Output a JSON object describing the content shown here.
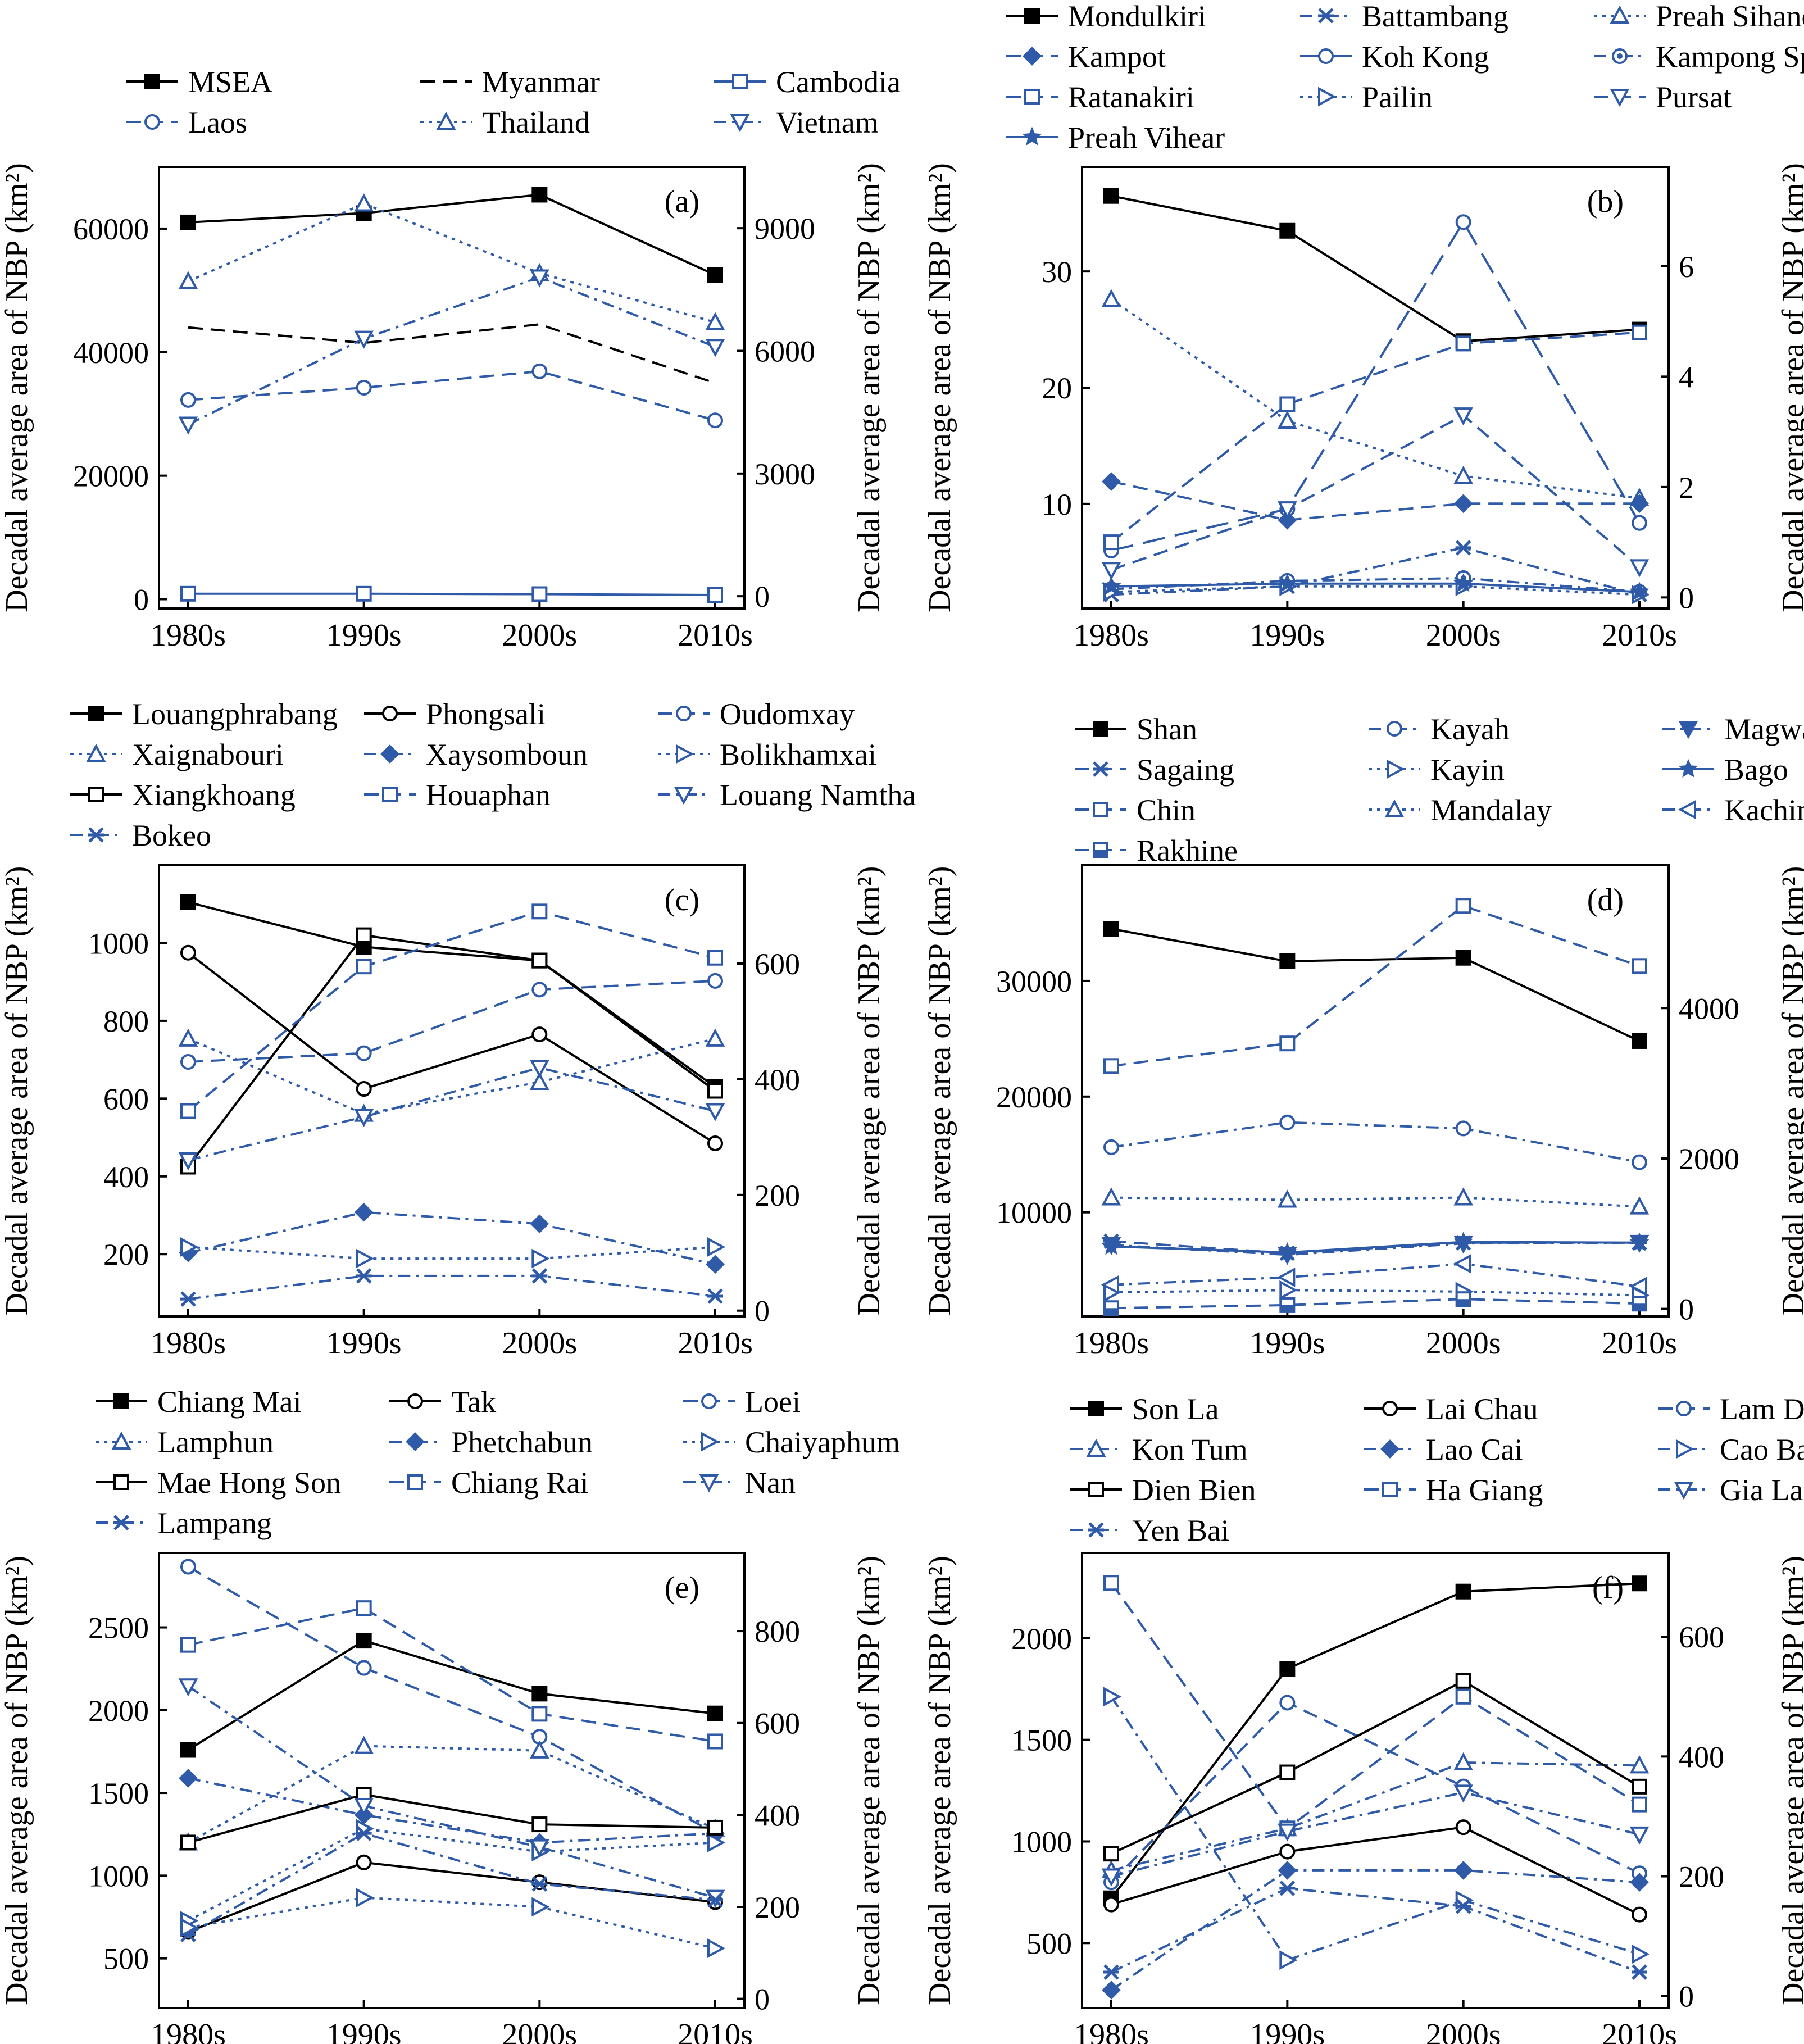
{
  "figure": {
    "x_categories": [
      "1980s",
      "1990s",
      "2000s",
      "2010s"
    ],
    "ylabel_left": "Decadal average area of NBP (km²)",
    "ylabel_right": "Decadal average area of NBP (km²)",
    "colors": {
      "black": "#000000",
      "blue": "#2f5aa8"
    }
  },
  "chart_data": [
    {
      "panel": "(a)",
      "type": "line",
      "x": [
        "1980s",
        "1990s",
        "2000s",
        "2010s"
      ],
      "ylim_left": [
        -1500,
        70000
      ],
      "ylim_right": [
        -300,
        10500
      ],
      "yticks_left": [
        0,
        20000,
        40000,
        60000
      ],
      "yticks_right": [
        0,
        3000,
        6000,
        9000
      ],
      "legend_cols": 3,
      "series": [
        {
          "name": "MSEA",
          "axis": "left",
          "color": "black",
          "dash": "solid",
          "marker": "square-filled",
          "values": [
            61000,
            62500,
            65500,
            52500
          ]
        },
        {
          "name": "Myanmar",
          "axis": "left",
          "color": "black",
          "dash": "dashed",
          "marker": "none",
          "values": [
            44000,
            41500,
            44500,
            35000
          ]
        },
        {
          "name": "Cambodia",
          "axis": "right",
          "color": "blue",
          "dash": "solid",
          "marker": "square-open",
          "values": [
            60,
            60,
            50,
            30
          ]
        },
        {
          "name": "Laos",
          "axis": "right",
          "color": "blue",
          "dash": "dashed",
          "marker": "circle-open",
          "values": [
            4800,
            5100,
            5500,
            4300
          ]
        },
        {
          "name": "Thailand",
          "axis": "right",
          "color": "blue",
          "dash": "dotted",
          "marker": "triangle-up-open",
          "values": [
            7700,
            9600,
            7900,
            6700
          ]
        },
        {
          "name": "Vietnam",
          "axis": "right",
          "color": "blue",
          "dash": "dashdot",
          "marker": "triangle-down-open",
          "values": [
            4200,
            6300,
            7800,
            6100
          ]
        }
      ]
    },
    {
      "panel": "(b)",
      "type": "line",
      "x": [
        "1980s",
        "1990s",
        "2000s",
        "2010s"
      ],
      "ylim_left": [
        1,
        39
      ],
      "ylim_right": [
        -0.2,
        7.8
      ],
      "yticks_left": [
        10,
        20,
        30
      ],
      "yticks_right": [
        0,
        2,
        4,
        6
      ],
      "legend_cols": 3,
      "series": [
        {
          "name": "Mondulkiri",
          "axis": "left",
          "color": "black",
          "dash": "solid",
          "marker": "square-filled",
          "values": [
            36.5,
            33.5,
            24,
            25
          ]
        },
        {
          "name": "Battambang",
          "axis": "right",
          "color": "blue",
          "dash": "dashdot",
          "marker": "x-star",
          "values": [
            0.05,
            0.2,
            0.9,
            0.05
          ]
        },
        {
          "name": "Preah Sihanouk",
          "axis": "right",
          "color": "blue",
          "dash": "dotted",
          "marker": "triangle-up-open",
          "values": [
            5.4,
            3.2,
            2.2,
            1.8
          ]
        },
        {
          "name": "Kampot",
          "axis": "right",
          "color": "blue",
          "dash": "dashed",
          "marker": "diamond-filled",
          "values": [
            2.1,
            1.4,
            1.7,
            1.7
          ]
        },
        {
          "name": "Koh Kong",
          "axis": "right",
          "color": "blue",
          "dash": "longdash",
          "marker": "circle-open",
          "values": [
            0.85,
            1.6,
            6.8,
            1.35
          ]
        },
        {
          "name": "Kampong Speu",
          "axis": "right",
          "color": "blue",
          "dash": "dashdot",
          "marker": "circle-dot",
          "values": [
            0.15,
            0.3,
            0.35,
            0.1
          ]
        },
        {
          "name": "Ratanakiri",
          "axis": "right",
          "color": "blue",
          "dash": "dashed",
          "marker": "square-open",
          "values": [
            1.0,
            3.5,
            4.6,
            4.8
          ]
        },
        {
          "name": "Pailin",
          "axis": "right",
          "color": "blue",
          "dash": "dotted",
          "marker": "triangle-right-open",
          "values": [
            0.1,
            0.2,
            0.2,
            0.05
          ]
        },
        {
          "name": "Pursat",
          "axis": "right",
          "color": "blue",
          "dash": "dashed",
          "marker": "triangle-down-open",
          "values": [
            0.5,
            1.6,
            3.3,
            0.55
          ]
        },
        {
          "name": "Preah Vihear",
          "axis": "right",
          "color": "blue",
          "dash": "solid",
          "marker": "star-filled",
          "values": [
            0.2,
            0.25,
            0.25,
            0.1
          ]
        }
      ]
    },
    {
      "panel": "(c)",
      "type": "line",
      "x": [
        "1980s",
        "1990s",
        "2000s",
        "2010s"
      ],
      "ylim_left": [
        40,
        1200
      ],
      "ylim_right": [
        -10,
        770
      ],
      "yticks_left": [
        200,
        400,
        600,
        800,
        1000
      ],
      "yticks_right": [
        0,
        200,
        400,
        600
      ],
      "legend_cols": 3,
      "series": [
        {
          "name": "Louangphrabang",
          "axis": "left",
          "color": "black",
          "dash": "solid",
          "marker": "square-filled",
          "values": [
            1105,
            990,
            955,
            630
          ]
        },
        {
          "name": "Phongsali",
          "axis": "left",
          "color": "black",
          "dash": "solid",
          "marker": "circle-open",
          "values": [
            975,
            625,
            765,
            485
          ]
        },
        {
          "name": "Oudomxay",
          "axis": "right",
          "color": "blue",
          "dash": "dashed",
          "marker": "circle-open",
          "values": [
            430,
            445,
            555,
            570
          ]
        },
        {
          "name": "Xaignabouri",
          "axis": "right",
          "color": "blue",
          "dash": "dotted",
          "marker": "triangle-up-open",
          "values": [
            470,
            340,
            395,
            470
          ]
        },
        {
          "name": "Xaysomboun",
          "axis": "right",
          "color": "blue",
          "dash": "dashdot",
          "marker": "diamond-filled",
          "values": [
            100,
            170,
            150,
            80
          ]
        },
        {
          "name": "Bolikhamxai",
          "axis": "right",
          "color": "blue",
          "dash": "dotted",
          "marker": "triangle-right-open",
          "values": [
            110,
            90,
            90,
            110
          ]
        },
        {
          "name": "Xiangkhoang",
          "axis": "left",
          "color": "black",
          "dash": "solid",
          "marker": "square-open",
          "values": [
            425,
            1020,
            955,
            620
          ]
        },
        {
          "name": "Houaphan",
          "axis": "right",
          "color": "blue",
          "dash": "dashed",
          "marker": "square-open",
          "values": [
            345,
            595,
            690,
            610
          ]
        },
        {
          "name": "Louang Namtha",
          "axis": "right",
          "color": "blue",
          "dash": "dashdot",
          "marker": "triangle-down-open",
          "values": [
            260,
            335,
            420,
            345
          ]
        },
        {
          "name": "Bokeo",
          "axis": "right",
          "color": "blue",
          "dash": "dashdot",
          "marker": "x-star",
          "values": [
            20,
            60,
            60,
            25
          ]
        }
      ]
    },
    {
      "panel": "(d)",
      "type": "line",
      "x": [
        "1980s",
        "1990s",
        "2000s",
        "2010s"
      ],
      "ylim_left": [
        1000,
        40000
      ],
      "ylim_right": [
        -100,
        5900
      ],
      "yticks_left": [
        10000,
        20000,
        30000
      ],
      "yticks_right": [
        0,
        2000,
        4000
      ],
      "legend_cols": 3,
      "series": [
        {
          "name": "Shan",
          "axis": "left",
          "color": "black",
          "dash": "solid",
          "marker": "square-filled",
          "values": [
            34500,
            31700,
            32000,
            24800
          ]
        },
        {
          "name": "Kayah",
          "axis": "right",
          "color": "blue",
          "dash": "dashdot",
          "marker": "circle-open",
          "values": [
            2150,
            2480,
            2400,
            1950
          ]
        },
        {
          "name": "Magway",
          "axis": "right",
          "color": "blue",
          "dash": "dashdot",
          "marker": "triangle-down-filled",
          "values": [
            850,
            720,
            870,
            880
          ]
        },
        {
          "name": "Sagaing",
          "axis": "right",
          "color": "blue",
          "dash": "dashed",
          "marker": "x-star",
          "values": [
            900,
            740,
            880,
            880
          ]
        },
        {
          "name": "Kayin",
          "axis": "right",
          "color": "blue",
          "dash": "dotted",
          "marker": "triangle-right-open",
          "values": [
            220,
            250,
            230,
            180
          ]
        },
        {
          "name": "Bago",
          "axis": "right",
          "color": "blue",
          "dash": "solid",
          "marker": "star-filled",
          "values": [
            830,
            750,
            890,
            880
          ]
        },
        {
          "name": "Chin",
          "axis": "right",
          "color": "blue",
          "dash": "dashed",
          "marker": "square-open",
          "values": [
            3230,
            3530,
            5360,
            4560
          ]
        },
        {
          "name": "Mandalay",
          "axis": "right",
          "color": "blue",
          "dash": "dotted",
          "marker": "triangle-up-open",
          "values": [
            1480,
            1450,
            1480,
            1360
          ]
        },
        {
          "name": "Kachin",
          "axis": "right",
          "color": "blue",
          "dash": "dashdot",
          "marker": "triangle-left-open",
          "values": [
            320,
            420,
            600,
            300
          ]
        },
        {
          "name": "Rakhine",
          "axis": "right",
          "color": "blue",
          "dash": "dashed",
          "marker": "square-half",
          "values": [
            10,
            50,
            130,
            70
          ]
        }
      ]
    },
    {
      "panel": "(e)",
      "type": "line",
      "x": [
        "1980s",
        "1990s",
        "2000s",
        "2010s"
      ],
      "ylim_left": [
        200,
        2950
      ],
      "ylim_right": [
        -20,
        970
      ],
      "yticks_left": [
        500,
        1000,
        1500,
        2000,
        2500
      ],
      "yticks_right": [
        0,
        200,
        400,
        600,
        800
      ],
      "legend_cols": 3,
      "series": [
        {
          "name": "Chiang Mai",
          "axis": "left",
          "color": "black",
          "dash": "solid",
          "marker": "square-filled",
          "values": [
            1760,
            2420,
            2100,
            1980
          ]
        },
        {
          "name": "Tak",
          "axis": "left",
          "color": "black",
          "dash": "solid",
          "marker": "circle-open",
          "values": [
            660,
            1080,
            960,
            840
          ]
        },
        {
          "name": "Loei",
          "axis": "right",
          "color": "blue",
          "dash": "dashed",
          "marker": "circle-open",
          "values": [
            940,
            720,
            570,
            360
          ]
        },
        {
          "name": "Lamphun",
          "axis": "right",
          "color": "blue",
          "dash": "dotted",
          "marker": "triangle-up-open",
          "values": [
            340,
            550,
            540,
            370
          ]
        },
        {
          "name": "Phetchabun",
          "axis": "right",
          "color": "blue",
          "dash": "dashdot",
          "marker": "diamond-filled",
          "values": [
            480,
            400,
            340,
            360
          ]
        },
        {
          "name": "Chaiyaphum",
          "axis": "right",
          "color": "blue",
          "dash": "dotted",
          "marker": "triangle-right-open",
          "values": [
            170,
            370,
            320,
            340
          ]
        },
        {
          "name": "Mae Hong Son",
          "axis": "left",
          "color": "black",
          "dash": "solid",
          "marker": "square-open",
          "values": [
            1200,
            1490,
            1310,
            1290
          ]
        },
        {
          "name": "Chiang Rai",
          "axis": "right",
          "color": "blue",
          "dash": "dashed",
          "marker": "square-open",
          "values": [
            770,
            850,
            620,
            560
          ]
        },
        {
          "name": "Nan",
          "axis": "right",
          "color": "blue",
          "dash": "dashdot",
          "marker": "triangle-down-open",
          "values": [
            680,
            420,
            330,
            220
          ]
        },
        {
          "name": "Lampang",
          "axis": "right",
          "color": "blue",
          "dash": "dashdot",
          "marker": "x-star",
          "values": [
            140,
            360,
            250,
            215
          ]
        },
        {
          "name": "",
          "axis": "right",
          "color": "blue",
          "dash": "dotted",
          "marker": "triangle-right-open",
          "values": [
            155,
            220,
            200,
            110
          ]
        }
      ]
    },
    {
      "panel": "(f)",
      "type": "line",
      "x": [
        "1980s",
        "1990s",
        "2000s",
        "2010s"
      ],
      "ylim_left": [
        180,
        2420
      ],
      "ylim_right": [
        -20,
        740
      ],
      "yticks_left": [
        500,
        1000,
        1500,
        2000
      ],
      "yticks_right": [
        0,
        200,
        400,
        600
      ],
      "legend_cols": 3,
      "series": [
        {
          "name": "Son La",
          "axis": "left",
          "color": "black",
          "dash": "solid",
          "marker": "square-filled",
          "values": [
            720,
            1850,
            2230,
            2270
          ]
        },
        {
          "name": "Lai Chau",
          "axis": "left",
          "color": "black",
          "dash": "solid",
          "marker": "circle-open",
          "values": [
            690,
            950,
            1070,
            640
          ]
        },
        {
          "name": "Lam Dong",
          "axis": "right",
          "color": "blue",
          "dash": "dashed",
          "marker": "circle-open",
          "values": [
            190,
            490,
            350,
            205
          ]
        },
        {
          "name": "Kon Tum",
          "axis": "right",
          "color": "blue",
          "dash": "dashdot",
          "marker": "triangle-up-open",
          "values": [
            210,
            280,
            390,
            385
          ]
        },
        {
          "name": "Lao Cai",
          "axis": "right",
          "color": "blue",
          "dash": "dashdot",
          "marker": "diamond-filled",
          "values": [
            10,
            210,
            210,
            190
          ]
        },
        {
          "name": "Cao Bang",
          "axis": "right",
          "color": "blue",
          "dash": "dashdot",
          "marker": "triangle-right-open",
          "values": [
            500,
            60,
            160,
            70
          ]
        },
        {
          "name": "Dien Bien",
          "axis": "left",
          "color": "black",
          "dash": "solid",
          "marker": "square-open",
          "values": [
            940,
            1340,
            1790,
            1270
          ]
        },
        {
          "name": "Ha Giang",
          "axis": "right",
          "color": "blue",
          "dash": "dashed",
          "marker": "square-open",
          "values": [
            690,
            280,
            500,
            320
          ]
        },
        {
          "name": "Gia Lai",
          "axis": "right",
          "color": "blue",
          "dash": "dashdot",
          "marker": "triangle-down-open",
          "values": [
            200,
            275,
            340,
            270
          ]
        },
        {
          "name": "Yen Bai",
          "axis": "right",
          "color": "blue",
          "dash": "dashdot",
          "marker": "x-star",
          "values": [
            40,
            180,
            150,
            40
          ]
        }
      ]
    }
  ]
}
